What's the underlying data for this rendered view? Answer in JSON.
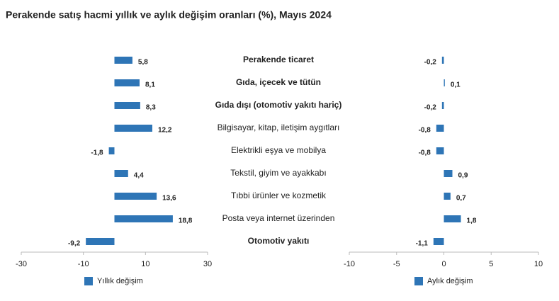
{
  "chart_data": {
    "type": "bar",
    "orientation": "horizontal",
    "title": "Perakende satış hacmi yıllık ve aylık değişim oranları (%), Mayıs 2024",
    "categories": [
      "Perakende ticaret",
      "Gıda, içecek ve tütün",
      "Gıda dışı (otomotiv yakıtı hariç)",
      "Bilgisayar, kitap, iletişim aygıtları",
      "Elektrikli eşya ve mobilya",
      "Tekstil, giyim ve ayakkabı",
      "Tıbbi ürünler ve kozmetik",
      "Posta veya internet üzerinden",
      "Otomotiv yakıtı"
    ],
    "bold_categories": [
      true,
      true,
      true,
      false,
      false,
      false,
      false,
      false,
      true
    ],
    "series": [
      {
        "name": "Yıllık değişim",
        "color": "#2e75b6",
        "values": [
          5.8,
          8.1,
          8.3,
          12.2,
          -1.8,
          4.4,
          13.6,
          18.8,
          -9.2
        ],
        "value_labels": [
          "5,8",
          "8,1",
          "8,3",
          "12,2",
          "-1,8",
          "4,4",
          "13,6",
          "18,8",
          "-9,2"
        ],
        "xlim": [
          -30,
          30
        ],
        "xticks": [
          -30,
          -10,
          10,
          30
        ]
      },
      {
        "name": "Aylık değişim",
        "color": "#2e75b6",
        "values": [
          -0.2,
          0.1,
          -0.2,
          -0.8,
          -0.8,
          0.9,
          0.7,
          1.8,
          -1.1
        ],
        "value_labels": [
          "-0,2",
          "0,1",
          "-0,2",
          "-0,8",
          "-0,8",
          "0,9",
          "0,7",
          "1,8",
          "-1,1"
        ],
        "xlim": [
          -10,
          10
        ],
        "xticks": [
          -10,
          -5,
          0,
          5,
          10
        ]
      }
    ],
    "grid": false
  }
}
